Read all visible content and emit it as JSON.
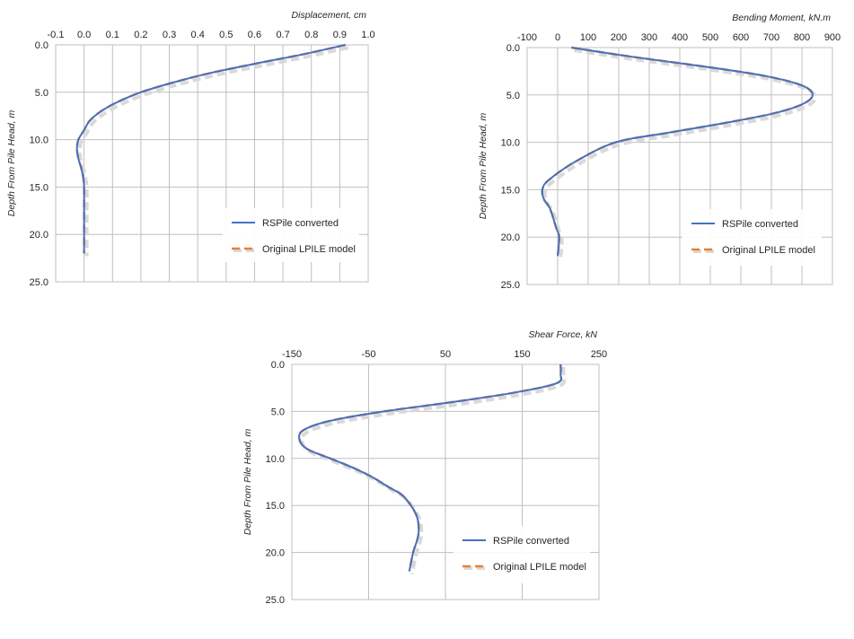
{
  "colors": {
    "rspile": "#4472c4",
    "lpile": "#ed7d31",
    "grid": "#bfbfbf",
    "text": "#262626"
  },
  "chart_data": [
    {
      "id": "displacement",
      "type": "line",
      "title": "",
      "xlabel": "Displacement, cm",
      "ylabel": "Depth From Pile Head, m",
      "xlim": [
        -0.1,
        1.0
      ],
      "ylim": [
        0,
        25
      ],
      "x_axis_position": "top",
      "y_inverted": true,
      "grid": true,
      "x_ticks": [
        "-0.1",
        "0.0",
        "0.1",
        "0.2",
        "0.3",
        "0.4",
        "0.5",
        "0.6",
        "0.7",
        "0.8",
        "0.9",
        "1.0"
      ],
      "y_ticks": [
        "0.0",
        "5.0",
        "10.0",
        "15.0",
        "20.0",
        "25.0"
      ],
      "legend_position": "bottom-right",
      "series": [
        {
          "name": "RSPile converted",
          "style": "solid",
          "x": [
            0.92,
            0.77,
            0.6,
            0.44,
            0.31,
            0.2,
            0.12,
            0.06,
            0.02,
            0.0,
            -0.02,
            -0.025,
            -0.02,
            -0.01,
            -0.003,
            0.0,
            0.0,
            0.0,
            0.0
          ],
          "y": [
            0,
            1,
            2,
            3,
            4,
            5,
            6,
            7,
            8,
            9,
            10,
            11,
            12,
            13,
            14,
            15,
            17,
            19,
            22
          ]
        },
        {
          "name": "Original LPILE model",
          "style": "dashed",
          "x": [
            0.92,
            0.77,
            0.6,
            0.44,
            0.31,
            0.2,
            0.12,
            0.06,
            0.02,
            0.0,
            -0.02,
            -0.025,
            -0.02,
            -0.01,
            -0.003,
            0.0,
            0.0,
            0.0,
            0.0
          ],
          "y": [
            0,
            1,
            2,
            3,
            4,
            5,
            6,
            7,
            8,
            9,
            10,
            11,
            12,
            13,
            14,
            15,
            17,
            19,
            22
          ]
        }
      ]
    },
    {
      "id": "moment",
      "type": "line",
      "title": "",
      "xlabel": "Bending Moment, kN.m",
      "ylabel": "Depth From Pile Head, m",
      "xlim": [
        -100,
        900
      ],
      "ylim": [
        0,
        25
      ],
      "x_axis_position": "top",
      "y_inverted": true,
      "grid": true,
      "x_ticks": [
        "-100",
        "0",
        "100",
        "200",
        "300",
        "400",
        "500",
        "600",
        "700",
        "800",
        "900"
      ],
      "y_ticks": [
        "0.0",
        "5.0",
        "10.0",
        "15.0",
        "20.0",
        "25.0"
      ],
      "legend_position": "bottom-right",
      "series": [
        {
          "name": "RSPile converted",
          "style": "solid",
          "x": [
            45,
            250,
            480,
            680,
            800,
            835,
            800,
            700,
            540,
            360,
            190,
            60,
            -30,
            -50,
            -45,
            -25,
            -5,
            5,
            0
          ],
          "y": [
            0,
            1,
            2,
            3,
            4,
            5,
            6,
            7,
            8,
            9,
            10,
            12,
            14,
            15,
            16,
            17,
            19,
            20,
            22
          ]
        },
        {
          "name": "Original LPILE model",
          "style": "dashed",
          "x": [
            45,
            250,
            480,
            680,
            800,
            835,
            800,
            700,
            540,
            360,
            190,
            60,
            -30,
            -50,
            -45,
            -25,
            -5,
            5,
            0
          ],
          "y": [
            0,
            1,
            2,
            3,
            4,
            5,
            6,
            7,
            8,
            9,
            10,
            12,
            14,
            15,
            16,
            17,
            19,
            20,
            22
          ]
        }
      ]
    },
    {
      "id": "shear",
      "type": "line",
      "title": "",
      "xlabel": "Shear Force, kN",
      "ylabel": "Depth From Pile Head, m",
      "xlim": [
        -150,
        250
      ],
      "ylim": [
        0,
        25
      ],
      "x_axis_position": "top",
      "y_inverted": true,
      "grid": true,
      "x_ticks": [
        "-150",
        "-50",
        "50",
        "150",
        "250"
      ],
      "y_ticks": [
        "0.0",
        "5.0",
        "10.0",
        "15.0",
        "20.0",
        "25.0"
      ],
      "legend_position": "bottom-right",
      "series": [
        {
          "name": "RSPile converted",
          "style": "solid",
          "x": [
            200,
            200,
            195,
            140,
            60,
            -30,
            -100,
            -135,
            -140,
            -130,
            -100,
            -70,
            -45,
            -25,
            -5,
            12,
            15,
            8,
            3
          ],
          "y": [
            0,
            1,
            2,
            3,
            4,
            5,
            6,
            7,
            8,
            9,
            10,
            11,
            12,
            13,
            14,
            16,
            18,
            20,
            22
          ]
        },
        {
          "name": "Original LPILE model",
          "style": "dashed",
          "x": [
            200,
            200,
            195,
            140,
            60,
            -30,
            -100,
            -135,
            -140,
            -130,
            -100,
            -70,
            -45,
            -25,
            -5,
            12,
            15,
            8,
            3
          ],
          "y": [
            0,
            1,
            2,
            3,
            4,
            5,
            6,
            7,
            8,
            9,
            10,
            11,
            12,
            13,
            14,
            16,
            18,
            20,
            22
          ]
        }
      ]
    }
  ]
}
